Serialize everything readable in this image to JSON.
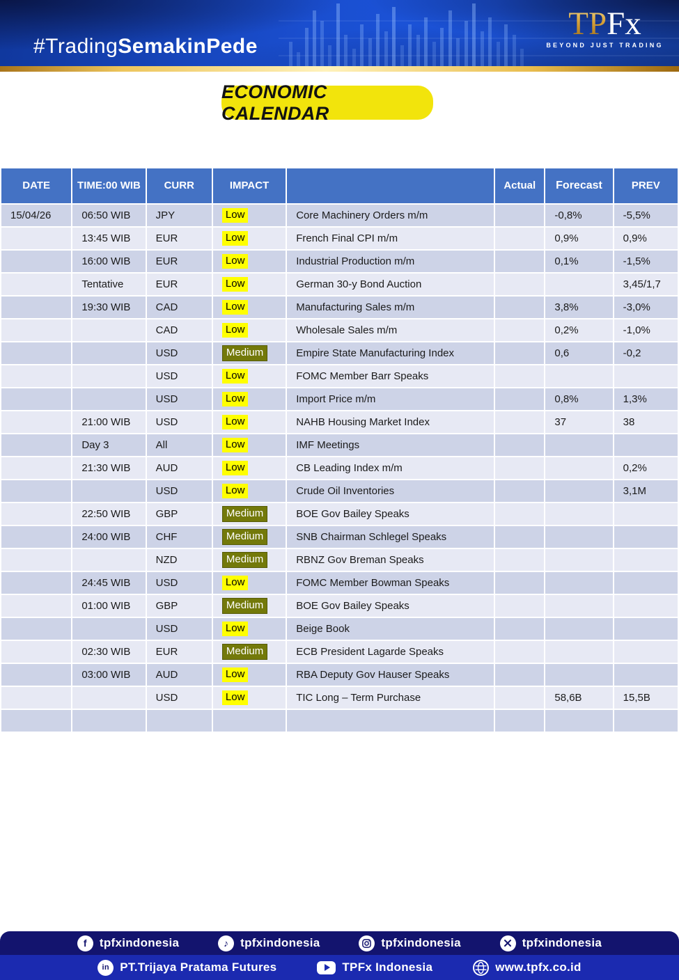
{
  "banner": {
    "hashtag_regular": "#Trading",
    "hashtag_bold": "SemakinPede",
    "logo_tp": "TP",
    "logo_fx": "Fx",
    "logo_tagline": "BEYOND JUST TRADING"
  },
  "title": "ECONOMIC CALENDAR",
  "colors": {
    "header_blue": "#4472c4",
    "row_dark": "#cdd3e7",
    "row_light": "#e7e9f4",
    "impact_low_bg": "#ffff00",
    "impact_medium_bg": "#73790a",
    "title_pill_yellow": "#f2e40c",
    "banner_blue": "#1c55dd",
    "footer_navy": "#13146e",
    "footer_blue": "#1b2ab0",
    "gold": "#e9bd4e"
  },
  "table": {
    "headers": [
      "DATE",
      "TIME:00 WIB",
      "CURR",
      "IMPACT",
      "",
      "Actual",
      "Forecast",
      "PREV"
    ],
    "rows": [
      {
        "date": "15/04/26",
        "time": "06:50 WIB",
        "curr": "JPY",
        "impact": "Low",
        "event": "Core Machinery Orders m/m",
        "actual": "",
        "forecast": "-0,8%",
        "prev": "-5,5%"
      },
      {
        "date": "",
        "time": "13:45 WIB",
        "curr": "EUR",
        "impact": "Low",
        "event": "French Final CPI m/m",
        "actual": "",
        "forecast": "0,9%",
        "prev": "0,9%"
      },
      {
        "date": "",
        "time": "16:00 WIB",
        "curr": "EUR",
        "impact": "Low",
        "event": "Industrial Production m/m",
        "actual": "",
        "forecast": "0,1%",
        "prev": "-1,5%"
      },
      {
        "date": "",
        "time": "Tentative",
        "curr": "EUR",
        "impact": "Low",
        "event": "German 30-y Bond Auction",
        "actual": "",
        "forecast": "",
        "prev": "3,45/1,7"
      },
      {
        "date": "",
        "time": "19:30 WIB",
        "curr": "CAD",
        "impact": "Low",
        "event": "Manufacturing Sales m/m",
        "actual": "",
        "forecast": "3,8%",
        "prev": "-3,0%"
      },
      {
        "date": "",
        "time": "",
        "curr": "CAD",
        "impact": "Low",
        "event": "Wholesale Sales m/m",
        "actual": "",
        "forecast": "0,2%",
        "prev": "-1,0%"
      },
      {
        "date": "",
        "time": "",
        "curr": "USD",
        "impact": "Medium",
        "event": "Empire State Manufacturing Index",
        "actual": "",
        "forecast": "0,6",
        "prev": "-0,2"
      },
      {
        "date": "",
        "time": "",
        "curr": "USD",
        "impact": "Low",
        "event": "FOMC Member Barr Speaks",
        "actual": "",
        "forecast": "",
        "prev": ""
      },
      {
        "date": "",
        "time": "",
        "curr": "USD",
        "impact": "Low",
        "event": "Import Price m/m",
        "actual": "",
        "forecast": "0,8%",
        "prev": "1,3%"
      },
      {
        "date": "",
        "time": "21:00 WIB",
        "curr": "USD",
        "impact": "Low",
        "event": "NAHB Housing Market Index",
        "actual": "",
        "forecast": "37",
        "prev": "38"
      },
      {
        "date": "",
        "time": "Day 3",
        "curr": "All",
        "impact": "Low",
        "event": "IMF Meetings",
        "actual": "",
        "forecast": "",
        "prev": ""
      },
      {
        "date": "",
        "time": "21:30 WIB",
        "curr": "AUD",
        "impact": "Low",
        "event": "CB Leading Index m/m",
        "actual": "",
        "forecast": "",
        "prev": "0,2%"
      },
      {
        "date": "",
        "time": "",
        "curr": "USD",
        "impact": "Low",
        "event": "Crude Oil Inventories",
        "actual": "",
        "forecast": "",
        "prev": "3,1M"
      },
      {
        "date": "",
        "time": "22:50 WIB",
        "curr": "GBP",
        "impact": "Medium",
        "event": "BOE Gov Bailey Speaks",
        "actual": "",
        "forecast": "",
        "prev": ""
      },
      {
        "date": "",
        "time": "24:00 WIB",
        "curr": "CHF",
        "impact": "Medium",
        "event": "SNB Chairman Schlegel Speaks",
        "actual": "",
        "forecast": "",
        "prev": ""
      },
      {
        "date": "",
        "time": "",
        "curr": "NZD",
        "impact": "Medium",
        "event": "RBNZ Gov Breman Speaks",
        "actual": "",
        "forecast": "",
        "prev": ""
      },
      {
        "date": "",
        "time": "24:45 WIB",
        "curr": "USD",
        "impact": "Low",
        "event": "FOMC Member Bowman Speaks",
        "actual": "",
        "forecast": "",
        "prev": ""
      },
      {
        "date": "",
        "time": "01:00 WIB",
        "curr": "GBP",
        "impact": "Medium",
        "event": "BOE Gov Bailey Speaks",
        "actual": "",
        "forecast": "",
        "prev": ""
      },
      {
        "date": "",
        "time": "",
        "curr": "USD",
        "impact": "Low",
        "event": "Beige Book",
        "actual": "",
        "forecast": "",
        "prev": ""
      },
      {
        "date": "",
        "time": "02:30 WIB",
        "curr": "EUR",
        "impact": "Medium",
        "event": "ECB President Lagarde Speaks",
        "actual": "",
        "forecast": "",
        "prev": ""
      },
      {
        "date": "",
        "time": "03:00 WIB",
        "curr": "AUD",
        "impact": "Low",
        "event": "RBA Deputy Gov Hauser Speaks",
        "actual": "",
        "forecast": "",
        "prev": ""
      },
      {
        "date": "",
        "time": "",
        "curr": "USD",
        "impact": "Low",
        "event": "TIC Long – Term Purchase",
        "actual": "",
        "forecast": "58,6B",
        "prev": "15,5B"
      },
      {
        "date": "",
        "time": "",
        "curr": "",
        "impact": "",
        "event": "",
        "actual": "",
        "forecast": "",
        "prev": ""
      }
    ]
  },
  "footer": {
    "row1": [
      {
        "icon": "facebook-icon",
        "label": "tpfxindonesia"
      },
      {
        "icon": "tiktok-icon",
        "label": "tpfxindonesia"
      },
      {
        "icon": "instagram-icon",
        "label": "tpfxindonesia"
      },
      {
        "icon": "x-icon",
        "label": "tpfxindonesia"
      }
    ],
    "row2": [
      {
        "icon": "linkedin-icon",
        "label": "PT.Trijaya Pratama Futures"
      },
      {
        "icon": "youtube-icon",
        "label": "TPFx Indonesia"
      },
      {
        "icon": "globe-icon",
        "label": "www.tpfx.co.id"
      }
    ]
  }
}
